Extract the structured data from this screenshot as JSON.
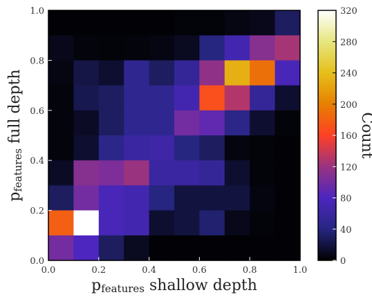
{
  "chart_data": {
    "type": "heatmap",
    "title": "",
    "xlabel": "p",
    "xlabel_sub": "features",
    "xlabel_rest": " shallow depth",
    "ylabel": "p",
    "ylabel_sub": "features",
    "ylabel_rest": " full depth",
    "xlim": [
      0.0,
      1.0
    ],
    "ylim": [
      0.0,
      1.0
    ],
    "x_ticks": [
      "0.0",
      "0.2",
      "0.4",
      "0.6",
      "0.8",
      "1.0"
    ],
    "y_ticks": [
      "0.0",
      "0.2",
      "0.4",
      "0.6",
      "0.8",
      "1.0"
    ],
    "bins": 10,
    "grid": false,
    "colorbar": {
      "label": "Count",
      "min": 0,
      "max": 320,
      "ticks": [
        "0",
        "40",
        "80",
        "120",
        "160",
        "200",
        "240",
        "280",
        "320"
      ],
      "colormap": "CMRmap",
      "placement": "right"
    },
    "rows_top_to_bottom": [
      [
        2,
        2,
        2,
        2,
        2,
        3,
        3,
        6,
        8,
        30
      ],
      [
        8,
        4,
        3,
        4,
        6,
        10,
        40,
        70,
        110,
        125
      ],
      [
        6,
        22,
        15,
        50,
        30,
        55,
        115,
        230,
        190,
        75
      ],
      [
        4,
        25,
        30,
        50,
        50,
        70,
        170,
        130,
        55,
        15
      ],
      [
        4,
        12,
        30,
        50,
        50,
        100,
        90,
        45,
        15,
        3
      ],
      [
        4,
        15,
        45,
        60,
        65,
        40,
        30,
        5,
        3,
        2
      ],
      [
        12,
        110,
        105,
        120,
        60,
        60,
        55,
        15,
        3,
        2
      ],
      [
        30,
        100,
        75,
        70,
        40,
        20,
        20,
        20,
        5,
        2
      ],
      [
        180,
        320,
        75,
        70,
        15,
        20,
        35,
        8,
        3,
        2
      ],
      [
        100,
        80,
        30,
        10,
        2,
        2,
        2,
        2,
        2,
        2
      ]
    ]
  }
}
